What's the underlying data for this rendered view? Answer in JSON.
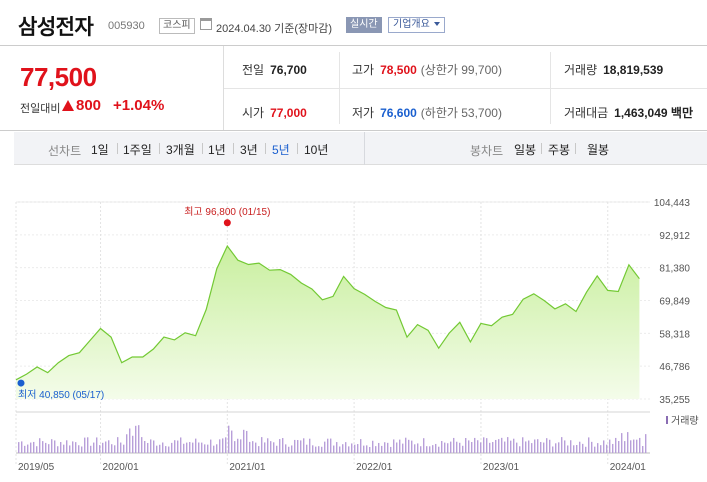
{
  "header": {
    "name": "삼성전자",
    "code": "005930",
    "market": "코스피",
    "date": "2024.04.30",
    "date_suffix": "기준(장마감)",
    "realtime": "실시간",
    "overview": "기업개요"
  },
  "quote": {
    "price": "77,500",
    "change_label": "전일대비",
    "change": "800",
    "change_pct": "+1.04%",
    "prev": {
      "label": "전일",
      "value": "76,700"
    },
    "open": {
      "label": "시가",
      "value": "77,000"
    },
    "high": {
      "label": "고가",
      "value": "78,500",
      "sub": "(상한가 99,700)"
    },
    "low": {
      "label": "저가",
      "value": "76,600",
      "sub": "(하한가 53,700)"
    },
    "volume": {
      "label": "거래량",
      "value": "18,819,539"
    },
    "amount": {
      "label": "거래대금",
      "value": "1,463,049",
      "unit": "백만"
    }
  },
  "periods": {
    "label": "선차트",
    "items": [
      "1일",
      "1주일",
      "3개월",
      "1년",
      "3년",
      "5년",
      "10년"
    ],
    "active": "5년",
    "candle_label": "봉차트",
    "candle_items": [
      "일봉",
      "주봉",
      "월봉"
    ]
  },
  "colors": {
    "up": "#e0121b",
    "down": "#1a5fcf",
    "area_line": "#73c934",
    "area_fill": "#c9ef9f"
  },
  "chart_data": {
    "type": "area",
    "x": [
      "2019-05",
      "2019-06",
      "2019-07",
      "2019-08",
      "2019-09",
      "2019-10",
      "2019-11",
      "2019-12",
      "2020-01",
      "2020-02",
      "2020-03",
      "2020-04",
      "2020-05",
      "2020-06",
      "2020-07",
      "2020-08",
      "2020-09",
      "2020-10",
      "2020-11",
      "2020-12",
      "2021-01",
      "2021-02",
      "2021-03",
      "2021-04",
      "2021-05",
      "2021-06",
      "2021-07",
      "2021-08",
      "2021-09",
      "2021-10",
      "2021-11",
      "2021-12",
      "2022-01",
      "2022-02",
      "2022-03",
      "2022-04",
      "2022-05",
      "2022-06",
      "2022-07",
      "2022-08",
      "2022-09",
      "2022-10",
      "2022-11",
      "2022-12",
      "2023-01",
      "2023-02",
      "2023-03",
      "2023-04",
      "2023-05",
      "2023-06",
      "2023-07",
      "2023-08",
      "2023-09",
      "2023-10",
      "2023-11",
      "2023-12",
      "2024-01",
      "2024-02",
      "2024-03",
      "2024-04"
    ],
    "y": [
      42000,
      44000,
      46500,
      44500,
      48000,
      50500,
      51500,
      55800,
      60000,
      57000,
      48000,
      50000,
      50000,
      52800,
      57000,
      56000,
      58500,
      57500,
      66700,
      81000,
      89000,
      84000,
      82500,
      83000,
      80500,
      80700,
      79000,
      76000,
      73900,
      70100,
      71300,
      78300,
      74000,
      72000,
      69500,
      67400,
      66500,
      57000,
      61400,
      59400,
      53100,
      58400,
      62200,
      55300,
      61800,
      61000,
      64000,
      65000,
      70300,
      72200,
      69800,
      66900,
      68700,
      66000,
      72800,
      78500,
      73400,
      73000,
      82400,
      77500
    ],
    "y_ticks": [
      "104,443",
      "92,912",
      "81,380",
      "69,849",
      "58,318",
      "46,786",
      "35,255"
    ],
    "ylim": [
      35255,
      104443
    ],
    "x_ticks": [
      "2019/05",
      "2020/01",
      "2021/01",
      "2022/01",
      "2023/01",
      "2024/01"
    ],
    "high": {
      "label": "최고",
      "value": "96,800",
      "date": "(01/15)"
    },
    "low": {
      "label": "최저",
      "value": "40,850",
      "date": "(05/17)"
    },
    "volume_label": "거래량"
  }
}
